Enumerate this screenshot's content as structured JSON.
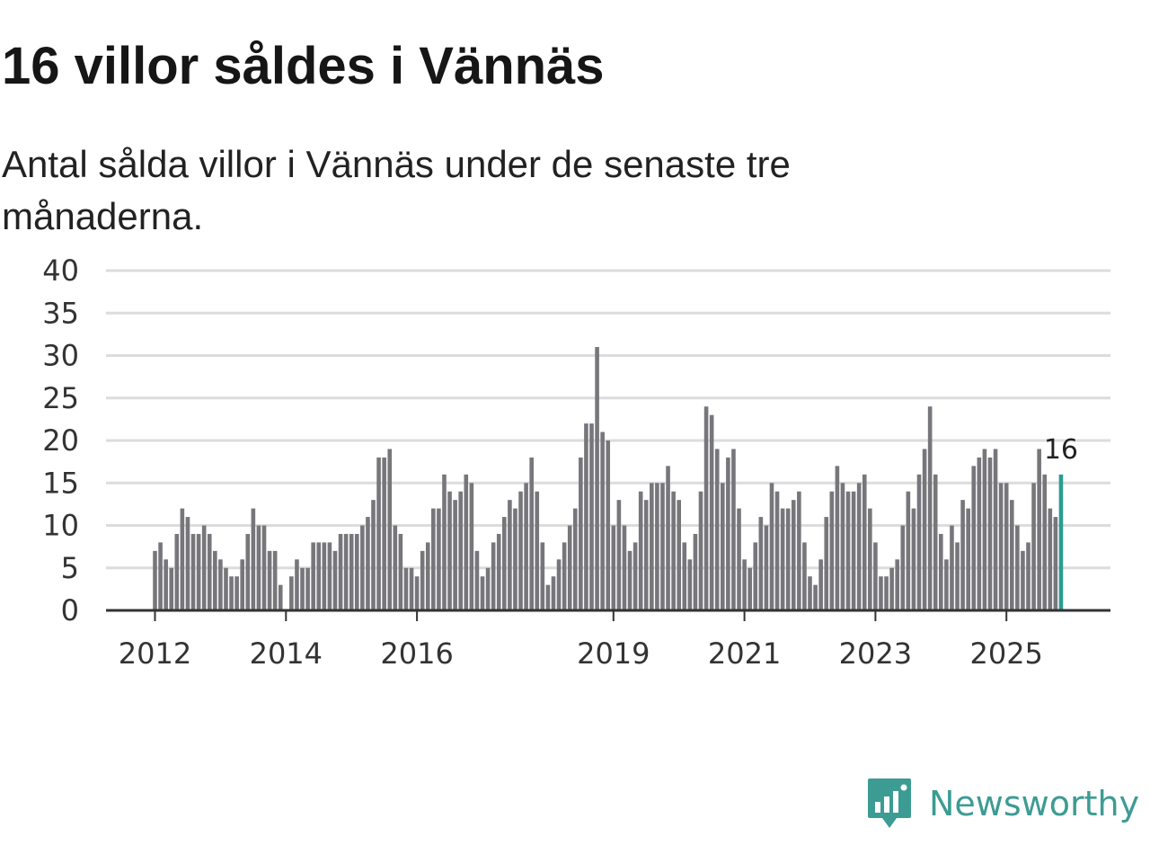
{
  "header": {
    "title": "16 villor såldes i Vännäs",
    "subtitle": "Antal sålda villor i Vännäs under de senaste tre månaderna."
  },
  "brand": {
    "name": "Newsworthy",
    "icon": "newsworthy-logo-icon"
  },
  "colors": {
    "bar": "#77767b",
    "highlight": "#2a9d8f",
    "grid": "#dcdcdc",
    "axis": "#333333",
    "brand": "#3c9c93"
  },
  "chart_data": {
    "type": "bar",
    "title": "16 villor såldes i Vännäs",
    "xlabel": "",
    "ylabel": "",
    "ylim": [
      0,
      40
    ],
    "yticks": [
      0,
      5,
      10,
      15,
      20,
      25,
      30,
      35,
      40
    ],
    "grid": true,
    "start": "2012-01",
    "x_ticks": [
      {
        "label": "2012",
        "index": 0
      },
      {
        "label": "2014",
        "index": 24
      },
      {
        "label": "2016",
        "index": 48
      },
      {
        "label": "2019",
        "index": 84
      },
      {
        "label": "2021",
        "index": 108
      },
      {
        "label": "2023",
        "index": 132
      },
      {
        "label": "2025",
        "index": 156
      }
    ],
    "values": [
      7,
      8,
      6,
      5,
      9,
      12,
      11,
      9,
      9,
      10,
      9,
      7,
      6,
      5,
      4,
      4,
      6,
      9,
      12,
      10,
      10,
      7,
      7,
      3,
      null,
      4,
      6,
      5,
      5,
      8,
      8,
      8,
      8,
      7,
      9,
      9,
      9,
      9,
      10,
      11,
      13,
      18,
      18,
      19,
      10,
      9,
      5,
      5,
      4,
      7,
      8,
      12,
      12,
      16,
      14,
      13,
      14,
      16,
      15,
      7,
      4,
      5,
      8,
      9,
      11,
      13,
      12,
      14,
      15,
      18,
      14,
      8,
      3,
      4,
      6,
      8,
      10,
      12,
      18,
      22,
      22,
      31,
      21,
      20,
      10,
      13,
      10,
      7,
      8,
      14,
      13,
      15,
      15,
      15,
      17,
      14,
      13,
      8,
      6,
      9,
      14,
      24,
      23,
      19,
      15,
      18,
      19,
      12,
      6,
      5,
      8,
      11,
      10,
      15,
      14,
      12,
      12,
      13,
      14,
      8,
      4,
      3,
      6,
      11,
      14,
      17,
      15,
      14,
      14,
      15,
      16,
      12,
      8,
      4,
      4,
      5,
      6,
      10,
      14,
      12,
      16,
      19,
      24,
      16,
      9,
      6,
      10,
      8,
      13,
      12,
      17,
      18,
      19,
      18,
      19,
      15,
      15,
      13,
      10,
      7,
      8,
      15,
      19,
      16,
      12,
      11,
      16
    ],
    "highlight": {
      "index": 166,
      "label": "16"
    }
  }
}
